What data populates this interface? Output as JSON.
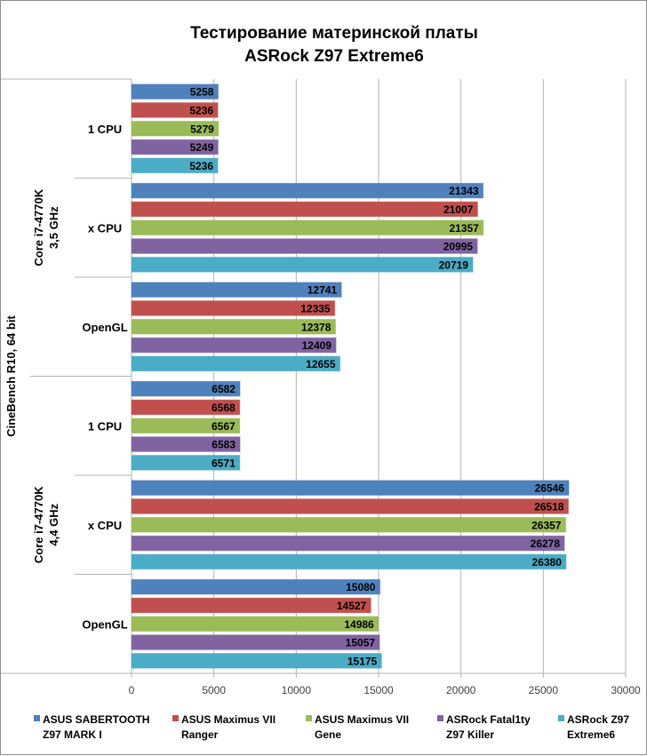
{
  "chart_data": {
    "type": "bar",
    "orientation": "horizontal",
    "title": [
      "Тестирование материнской платы",
      "ASRock Z97 Extreme6"
    ],
    "xlabel": "",
    "ylabel": "",
    "xlim": [
      0,
      30000
    ],
    "xticks": [
      "0",
      "5000",
      "10000",
      "15000",
      "20000",
      "25000",
      "30000"
    ],
    "xtick_values": [
      0,
      5000,
      10000,
      15000,
      20000,
      25000,
      30000
    ],
    "grid": true,
    "legend_position": "bottom",
    "outer_group": "CineBench R10, 64 bit",
    "groups": [
      {
        "name": [
          "Core i7-4770K",
          "3,5 GHz"
        ],
        "categories": [
          "1 CPU",
          "x CPU",
          "OpenGL"
        ]
      },
      {
        "name": [
          "Core i7-4770K",
          "4,4 GHz"
        ],
        "categories": [
          "1 CPU",
          "x CPU",
          "OpenGL"
        ]
      }
    ],
    "categories": [
      "3,5 GHz / 1 CPU",
      "3,5 GHz / x CPU",
      "3,5 GHz / OpenGL",
      "4,4 GHz / 1 CPU",
      "4,4 GHz / x CPU",
      "4,4 GHz / OpenGL"
    ],
    "series": [
      {
        "name": "ASUS SABERTOOTH Z97 MARK I",
        "legend_lines": [
          "ASUS SABERTOOTH",
          "Z97 MARK I"
        ],
        "color": "#4f81bd",
        "values": [
          5258,
          21343,
          12741,
          6582,
          26546,
          15080
        ]
      },
      {
        "name": "ASUS Maximus VII Ranger",
        "legend_lines": [
          "ASUS Maximus VII",
          "Ranger"
        ],
        "color": "#c0504d",
        "values": [
          5236,
          21007,
          12335,
          6568,
          26518,
          14527
        ]
      },
      {
        "name": "ASUS Maximus VII Gene",
        "legend_lines": [
          "ASUS Maximus VII",
          "Gene"
        ],
        "color": "#9bbb59",
        "values": [
          5279,
          21357,
          12378,
          6567,
          26357,
          14986
        ]
      },
      {
        "name": "ASRock Fatal1ty Z97 Killer",
        "legend_lines": [
          "ASRock Fatal1ty",
          "Z97 Killer"
        ],
        "color": "#8064a2",
        "values": [
          5249,
          20995,
          12409,
          6583,
          26278,
          15057
        ]
      },
      {
        "name": "ASRock Z97 Extreme6",
        "legend_lines": [
          "ASRock Z97",
          "Extreme6"
        ],
        "color": "#4bacc6",
        "values": [
          5236,
          20719,
          12655,
          6571,
          26380,
          15175
        ]
      }
    ]
  }
}
